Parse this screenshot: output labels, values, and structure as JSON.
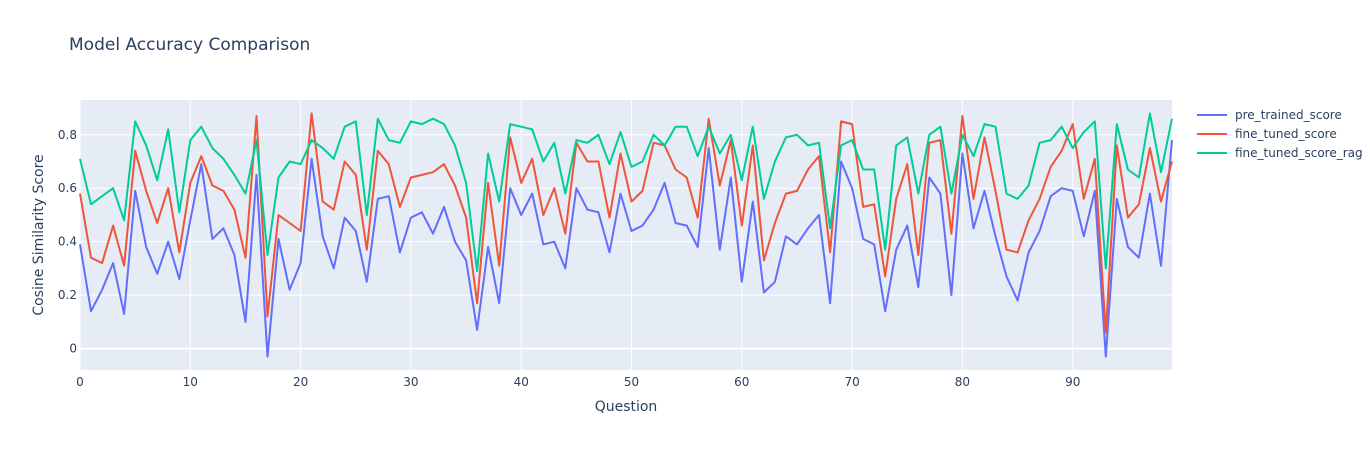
{
  "chart_data": {
    "type": "line",
    "title": "Model Accuracy Comparison",
    "xlabel": "Question",
    "ylabel": "Cosine Similarity Score",
    "xlim": [
      0,
      99
    ],
    "ylim": [
      -0.08,
      0.93
    ],
    "x_ticks": [
      0,
      10,
      20,
      30,
      40,
      50,
      60,
      70,
      80,
      90
    ],
    "y_ticks": [
      0,
      0.2,
      0.4,
      0.6,
      0.8
    ],
    "grid": true,
    "legend_position": "top-right",
    "colors": {
      "plot_background": "#e5ecf6",
      "grid": "#ffffff",
      "text": "#2a3f5f"
    },
    "series": [
      {
        "name": "pre_trained_score",
        "color": "#636efa",
        "values": [
          0.39,
          0.14,
          0.22,
          0.32,
          0.13,
          0.59,
          0.38,
          0.28,
          0.4,
          0.26,
          0.48,
          0.69,
          0.41,
          0.45,
          0.35,
          0.1,
          0.65,
          -0.03,
          0.41,
          0.22,
          0.32,
          0.71,
          0.42,
          0.3,
          0.49,
          0.44,
          0.25,
          0.56,
          0.57,
          0.36,
          0.49,
          0.51,
          0.43,
          0.53,
          0.4,
          0.33,
          0.07,
          0.38,
          0.17,
          0.6,
          0.5,
          0.58,
          0.39,
          0.4,
          0.3,
          0.6,
          0.52,
          0.51,
          0.36,
          0.58,
          0.44,
          0.46,
          0.52,
          0.62,
          0.47,
          0.46,
          0.38,
          0.75,
          0.37,
          0.64,
          0.25,
          0.55,
          0.21,
          0.25,
          0.42,
          0.39,
          0.45,
          0.5,
          0.17,
          0.7,
          0.6,
          0.41,
          0.39,
          0.14,
          0.37,
          0.46,
          0.23,
          0.64,
          0.58,
          0.2,
          0.73,
          0.45,
          0.59,
          0.42,
          0.27,
          0.18,
          0.36,
          0.44,
          0.57,
          0.6,
          0.59,
          0.42,
          0.59,
          -0.03,
          0.56,
          0.38,
          0.34,
          0.58,
          0.31,
          0.78
        ]
      },
      {
        "name": "fine_tuned_score",
        "color": "#ef553b",
        "values": [
          0.58,
          0.34,
          0.32,
          0.46,
          0.31,
          0.74,
          0.59,
          0.47,
          0.6,
          0.36,
          0.62,
          0.72,
          0.61,
          0.59,
          0.52,
          0.34,
          0.87,
          0.12,
          0.5,
          0.47,
          0.44,
          0.88,
          0.55,
          0.52,
          0.7,
          0.65,
          0.37,
          0.74,
          0.69,
          0.53,
          0.64,
          0.65,
          0.66,
          0.69,
          0.61,
          0.49,
          0.17,
          0.62,
          0.31,
          0.79,
          0.62,
          0.71,
          0.5,
          0.6,
          0.43,
          0.77,
          0.7,
          0.7,
          0.49,
          0.73,
          0.55,
          0.59,
          0.77,
          0.76,
          0.67,
          0.64,
          0.49,
          0.86,
          0.61,
          0.78,
          0.46,
          0.76,
          0.33,
          0.47,
          0.58,
          0.59,
          0.67,
          0.72,
          0.36,
          0.85,
          0.84,
          0.53,
          0.54,
          0.27,
          0.56,
          0.69,
          0.35,
          0.77,
          0.78,
          0.43,
          0.87,
          0.56,
          0.79,
          0.59,
          0.37,
          0.36,
          0.48,
          0.56,
          0.68,
          0.74,
          0.84,
          0.56,
          0.71,
          0.06,
          0.76,
          0.49,
          0.54,
          0.75,
          0.55,
          0.7
        ]
      },
      {
        "name": "fine_tuned_score_rag",
        "color": "#00cc96",
        "values": [
          0.71,
          0.54,
          0.57,
          0.6,
          0.48,
          0.85,
          0.76,
          0.63,
          0.82,
          0.51,
          0.78,
          0.83,
          0.75,
          0.71,
          0.65,
          0.58,
          0.78,
          0.35,
          0.64,
          0.7,
          0.69,
          0.78,
          0.75,
          0.71,
          0.83,
          0.85,
          0.5,
          0.86,
          0.78,
          0.77,
          0.85,
          0.84,
          0.86,
          0.84,
          0.76,
          0.62,
          0.29,
          0.73,
          0.55,
          0.84,
          0.83,
          0.82,
          0.7,
          0.77,
          0.58,
          0.78,
          0.77,
          0.8,
          0.69,
          0.81,
          0.68,
          0.7,
          0.8,
          0.76,
          0.83,
          0.83,
          0.72,
          0.83,
          0.73,
          0.8,
          0.63,
          0.83,
          0.56,
          0.7,
          0.79,
          0.8,
          0.76,
          0.77,
          0.45,
          0.76,
          0.78,
          0.67,
          0.67,
          0.37,
          0.76,
          0.79,
          0.58,
          0.8,
          0.83,
          0.58,
          0.8,
          0.72,
          0.84,
          0.83,
          0.58,
          0.56,
          0.61,
          0.77,
          0.78,
          0.83,
          0.75,
          0.81,
          0.85,
          0.3,
          0.84,
          0.67,
          0.64,
          0.88,
          0.66,
          0.86
        ]
      }
    ]
  }
}
